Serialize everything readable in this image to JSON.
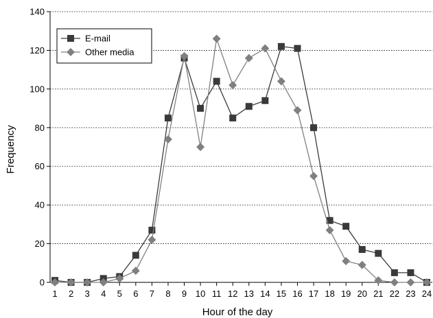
{
  "chart_data": {
    "type": "line",
    "xlabel": "Hour of the day",
    "ylabel": "Frequency",
    "x": [
      1,
      2,
      3,
      4,
      5,
      6,
      7,
      8,
      9,
      10,
      11,
      12,
      13,
      14,
      15,
      16,
      17,
      18,
      19,
      20,
      21,
      22,
      23,
      24
    ],
    "ylim": [
      0,
      140
    ],
    "yticks": [
      0,
      20,
      40,
      60,
      80,
      100,
      120,
      140
    ],
    "grid": true,
    "legend_position": "top-left",
    "series": [
      {
        "name": "E-mail",
        "marker": "square",
        "color": "#3a3a3a",
        "values": [
          1,
          0,
          0,
          2,
          3,
          14,
          27,
          85,
          116,
          90,
          104,
          85,
          91,
          94,
          122,
          121,
          80,
          32,
          29,
          17,
          15,
          5,
          5,
          0
        ]
      },
      {
        "name": "Other media",
        "marker": "diamond",
        "color": "#808080",
        "values": [
          0,
          0,
          0,
          0,
          2,
          6,
          22,
          74,
          117,
          70,
          126,
          102,
          116,
          121,
          104,
          89,
          55,
          27,
          11,
          9,
          1,
          0,
          0,
          0
        ]
      }
    ]
  }
}
